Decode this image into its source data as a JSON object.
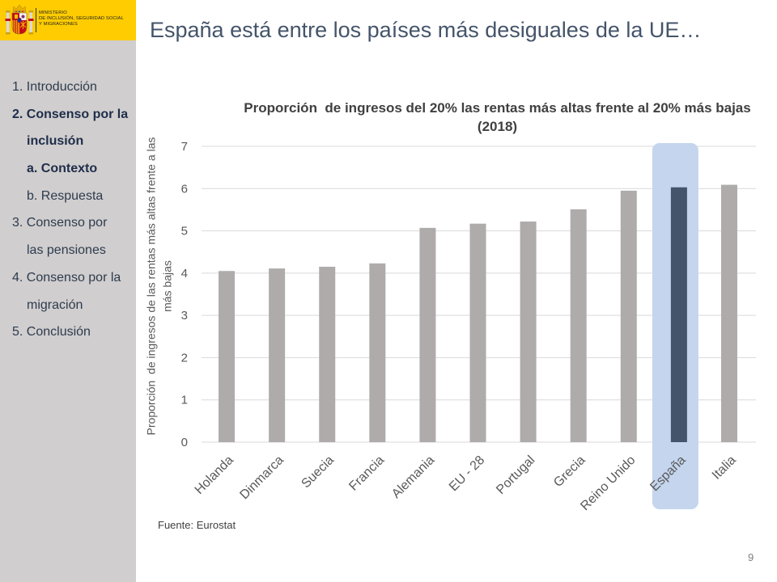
{
  "logo": {
    "lines": [
      "MINISTERIO",
      "DE INCLUSIÓN, SEGURIDAD SOCIAL",
      "Y MIGRACIONES"
    ]
  },
  "slide": {
    "title": "España está entre los países más desiguales de la UE…",
    "source": "Fuente: Eurostat",
    "page_number": "9"
  },
  "sidebar": {
    "items": [
      {
        "lines": [
          "1. Introducción"
        ],
        "level": 1,
        "active": false
      },
      {
        "lines": [
          "2. Consenso por la",
          "inclusión"
        ],
        "level": 1,
        "active": true
      },
      {
        "lines": [
          "a. Contexto"
        ],
        "level": 2,
        "active": true
      },
      {
        "lines": [
          "b. Respuesta"
        ],
        "level": 2,
        "active": false
      },
      {
        "lines": [
          "3. Consenso por",
          "las pensiones"
        ],
        "level": 1,
        "active": false
      },
      {
        "lines": [
          "4. Consenso por la",
          "migración"
        ],
        "level": 1,
        "active": false
      },
      {
        "lines": [
          "5. Conclusión"
        ],
        "level": 1,
        "active": false
      }
    ]
  },
  "chart_data": {
    "type": "bar",
    "title": "Proporción  de ingresos del 20% las rentas más altas frente al 20% más bajas (2018)",
    "xlabel": "",
    "ylabel": "Proporción  de ingresos de las rentas más altas frente a las más bajas",
    "categories": [
      "Holanda",
      "Dinmarca",
      "Suecia",
      "Francia",
      "Alemania",
      "EU - 28",
      "Portugal",
      "Grecia",
      "Reino Unido",
      "España",
      "Italia"
    ],
    "values": [
      4.05,
      4.11,
      4.15,
      4.23,
      5.07,
      5.17,
      5.22,
      5.51,
      5.95,
      6.03,
      6.09
    ],
    "ylim": [
      0,
      7
    ],
    "yticks": [
      0,
      1,
      2,
      3,
      4,
      5,
      6,
      7
    ],
    "grid": true,
    "legend": "none",
    "highlight": "España",
    "colors": {
      "bar": "#afabab",
      "highlight_bar": "#44546a",
      "highlight_box": "#c5d5ee",
      "gridline": "#d9d9d9",
      "tick_label": "#595959"
    }
  }
}
